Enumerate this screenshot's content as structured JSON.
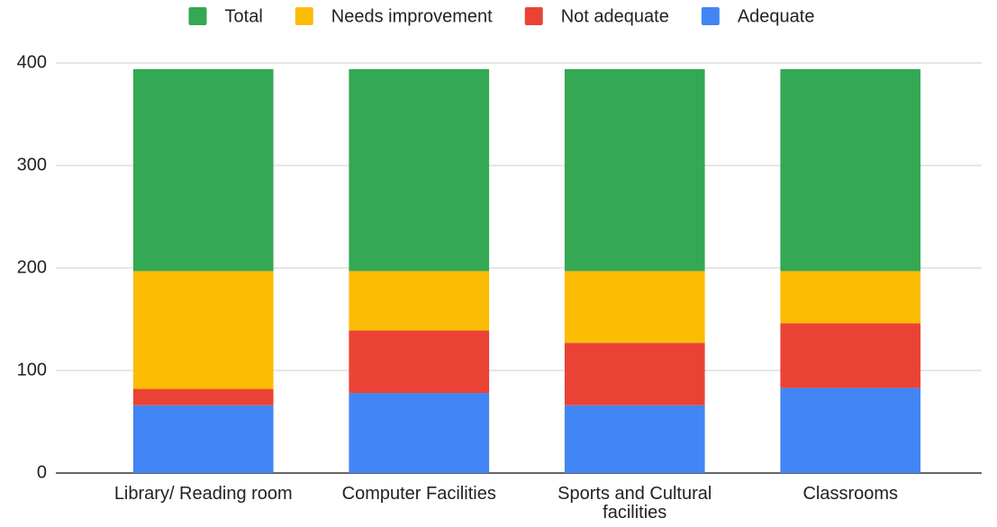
{
  "chart_data": {
    "type": "stacked_bar",
    "categories": [
      "Library/ Reading room",
      "Computer Facilities",
      "Sports and Cultural facilities",
      "Classrooms"
    ],
    "series": [
      {
        "name": "Total",
        "color": "#34a853",
        "values": [
          197,
          197,
          197,
          197
        ]
      },
      {
        "name": "Needs improvement",
        "color": "#fbbc04",
        "values": [
          115,
          58,
          70,
          51
        ]
      },
      {
        "name": "Not adequate",
        "color": "#ea4335",
        "values": [
          16,
          61,
          61,
          63
        ]
      },
      {
        "name": "Adequate",
        "color": "#4285f4",
        "values": [
          66,
          78,
          66,
          83
        ]
      }
    ],
    "ylim": [
      0,
      400
    ],
    "yticks": [
      0,
      100,
      200,
      300,
      400
    ],
    "grid": true,
    "legend": "top"
  }
}
